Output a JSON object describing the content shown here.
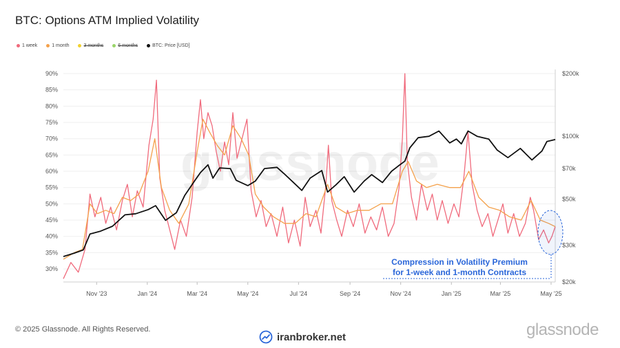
{
  "title": "BTC: Options ATM Implied Volatility",
  "legend": [
    {
      "label": "1 week",
      "color": "#f06a7c",
      "active": true
    },
    {
      "label": "1 month",
      "color": "#f4a14b",
      "active": true
    },
    {
      "label": "3 months",
      "color": "#f2d12e",
      "active": false
    },
    {
      "label": "6 months",
      "color": "#9ad56a",
      "active": false
    },
    {
      "label": "BTC: Price [USD]",
      "color": "#111111",
      "active": true
    }
  ],
  "watermark": "glassnode",
  "annotation": {
    "line1": "Compression in Volatility Premium",
    "line2": "for 1-week and 1-month Contracts",
    "color": "#2a66d9"
  },
  "footer": {
    "copyright": "© 2025 Glassnode. All Rights Reserved.",
    "brand": "glassnode",
    "broker": "iranbroker.net"
  },
  "chart_data": {
    "type": "line",
    "x_ticks": [
      "Nov '23",
      "Jan '24",
      "Mar '24",
      "May '24",
      "Jul '24",
      "Sep '24",
      "Nov '24",
      "Jan '25",
      "Mar '25",
      "May '25"
    ],
    "x_range": [
      "2023-09-22",
      "2025-05-06"
    ],
    "y_left": {
      "ticks": [
        "30%",
        "35%",
        "40%",
        "45%",
        "50%",
        "55%",
        "60%",
        "65%",
        "70%",
        "75%",
        "80%",
        "85%",
        "90%"
      ],
      "range": [
        26,
        90
      ]
    },
    "y_right": {
      "scale": "log",
      "ticks": [
        "$20k",
        "$30k",
        "$50k",
        "$70k",
        "$100k",
        "$200k"
      ],
      "tick_values": [
        20000,
        30000,
        50000,
        70000,
        100000,
        200000
      ],
      "range": [
        20000,
        200000
      ]
    },
    "grid": true,
    "series": [
      {
        "name": "1 week",
        "axis": "left",
        "color": "#f06a7c",
        "points": [
          [
            "2023-09-22",
            27
          ],
          [
            "2023-10-01",
            32
          ],
          [
            "2023-10-10",
            29
          ],
          [
            "2023-10-18",
            36
          ],
          [
            "2023-10-24",
            53
          ],
          [
            "2023-10-30",
            46
          ],
          [
            "2023-11-06",
            52
          ],
          [
            "2023-11-12",
            44
          ],
          [
            "2023-11-18",
            49
          ],
          [
            "2023-11-25",
            42
          ],
          [
            "2023-12-02",
            51
          ],
          [
            "2023-12-08",
            56
          ],
          [
            "2023-12-14",
            46
          ],
          [
            "2023-12-20",
            54
          ],
          [
            "2023-12-27",
            49
          ],
          [
            "2024-01-03",
            68
          ],
          [
            "2024-01-08",
            76
          ],
          [
            "2024-01-12",
            88
          ],
          [
            "2024-01-16",
            58
          ],
          [
            "2024-01-22",
            48
          ],
          [
            "2024-01-28",
            42
          ],
          [
            "2024-02-03",
            36
          ],
          [
            "2024-02-10",
            45
          ],
          [
            "2024-02-17",
            40
          ],
          [
            "2024-02-24",
            52
          ],
          [
            "2024-03-01",
            72
          ],
          [
            "2024-03-05",
            82
          ],
          [
            "2024-03-09",
            70
          ],
          [
            "2024-03-14",
            78
          ],
          [
            "2024-03-19",
            74
          ],
          [
            "2024-03-24",
            66
          ],
          [
            "2024-03-29",
            60
          ],
          [
            "2024-04-03",
            69
          ],
          [
            "2024-04-08",
            62
          ],
          [
            "2024-04-13",
            78
          ],
          [
            "2024-04-18",
            64
          ],
          [
            "2024-04-24",
            70
          ],
          [
            "2024-04-30",
            76
          ],
          [
            "2024-05-05",
            54
          ],
          [
            "2024-05-11",
            46
          ],
          [
            "2024-05-17",
            51
          ],
          [
            "2024-05-23",
            43
          ],
          [
            "2024-05-29",
            47
          ],
          [
            "2024-06-05",
            40
          ],
          [
            "2024-06-12",
            49
          ],
          [
            "2024-06-19",
            38
          ],
          [
            "2024-06-26",
            45
          ],
          [
            "2024-07-03",
            37
          ],
          [
            "2024-07-09",
            52
          ],
          [
            "2024-07-15",
            43
          ],
          [
            "2024-07-22",
            48
          ],
          [
            "2024-07-28",
            41
          ],
          [
            "2024-08-03",
            56
          ],
          [
            "2024-08-06",
            68
          ],
          [
            "2024-08-10",
            51
          ],
          [
            "2024-08-16",
            45
          ],
          [
            "2024-08-22",
            40
          ],
          [
            "2024-08-29",
            48
          ],
          [
            "2024-09-05",
            43
          ],
          [
            "2024-09-12",
            50
          ],
          [
            "2024-09-19",
            41
          ],
          [
            "2024-09-26",
            46
          ],
          [
            "2024-10-03",
            42
          ],
          [
            "2024-10-10",
            49
          ],
          [
            "2024-10-17",
            40
          ],
          [
            "2024-10-24",
            44
          ],
          [
            "2024-10-30",
            55
          ],
          [
            "2024-11-03",
            70
          ],
          [
            "2024-11-06",
            90
          ],
          [
            "2024-11-09",
            63
          ],
          [
            "2024-11-14",
            52
          ],
          [
            "2024-11-20",
            45
          ],
          [
            "2024-11-26",
            56
          ],
          [
            "2024-12-03",
            48
          ],
          [
            "2024-12-09",
            53
          ],
          [
            "2024-12-15",
            45
          ],
          [
            "2024-12-21",
            51
          ],
          [
            "2024-12-28",
            44
          ],
          [
            "2025-01-04",
            50
          ],
          [
            "2025-01-10",
            46
          ],
          [
            "2025-01-16",
            58
          ],
          [
            "2025-01-21",
            72
          ],
          [
            "2025-01-26",
            56
          ],
          [
            "2025-02-01",
            48
          ],
          [
            "2025-02-07",
            43
          ],
          [
            "2025-02-14",
            47
          ],
          [
            "2025-02-20",
            40
          ],
          [
            "2025-02-26",
            45
          ],
          [
            "2025-03-04",
            50
          ],
          [
            "2025-03-10",
            41
          ],
          [
            "2025-03-17",
            47
          ],
          [
            "2025-03-24",
            40
          ],
          [
            "2025-03-31",
            44
          ],
          [
            "2025-04-06",
            52
          ],
          [
            "2025-04-10",
            48
          ],
          [
            "2025-04-16",
            39
          ],
          [
            "2025-04-22",
            42
          ],
          [
            "2025-04-28",
            38
          ],
          [
            "2025-05-02",
            40
          ],
          [
            "2025-05-06",
            43
          ]
        ]
      },
      {
        "name": "1 month",
        "axis": "left",
        "color": "#f4a14b",
        "points": [
          [
            "2023-09-22",
            33
          ],
          [
            "2023-10-05",
            35
          ],
          [
            "2023-10-15",
            36
          ],
          [
            "2023-10-24",
            50
          ],
          [
            "2023-11-02",
            47
          ],
          [
            "2023-11-12",
            48
          ],
          [
            "2023-11-22",
            47
          ],
          [
            "2023-12-02",
            52
          ],
          [
            "2023-12-12",
            51
          ],
          [
            "2023-12-22",
            53
          ],
          [
            "2024-01-02",
            60
          ],
          [
            "2024-01-10",
            70
          ],
          [
            "2024-01-18",
            55
          ],
          [
            "2024-01-28",
            48
          ],
          [
            "2024-02-08",
            44
          ],
          [
            "2024-02-20",
            50
          ],
          [
            "2024-03-01",
            66
          ],
          [
            "2024-03-08",
            76
          ],
          [
            "2024-03-16",
            72
          ],
          [
            "2024-03-25",
            68
          ],
          [
            "2024-04-03",
            65
          ],
          [
            "2024-04-13",
            74
          ],
          [
            "2024-04-23",
            70
          ],
          [
            "2024-05-02",
            65
          ],
          [
            "2024-05-10",
            53
          ],
          [
            "2024-05-20",
            49
          ],
          [
            "2024-06-01",
            46
          ],
          [
            "2024-06-14",
            44
          ],
          [
            "2024-06-27",
            44
          ],
          [
            "2024-07-10",
            47
          ],
          [
            "2024-07-22",
            46
          ],
          [
            "2024-08-05",
            56
          ],
          [
            "2024-08-15",
            49
          ],
          [
            "2024-08-28",
            47
          ],
          [
            "2024-09-10",
            48
          ],
          [
            "2024-09-24",
            48
          ],
          [
            "2024-10-08",
            50
          ],
          [
            "2024-10-22",
            50
          ],
          [
            "2024-11-03",
            60
          ],
          [
            "2024-11-10",
            63
          ],
          [
            "2024-11-20",
            57
          ],
          [
            "2024-12-02",
            55
          ],
          [
            "2024-12-15",
            56
          ],
          [
            "2024-12-30",
            55
          ],
          [
            "2025-01-12",
            55
          ],
          [
            "2025-01-22",
            60
          ],
          [
            "2025-02-03",
            52
          ],
          [
            "2025-02-15",
            49
          ],
          [
            "2025-02-28",
            48
          ],
          [
            "2025-03-12",
            46
          ],
          [
            "2025-03-26",
            45
          ],
          [
            "2025-04-07",
            51
          ],
          [
            "2025-04-18",
            45
          ],
          [
            "2025-04-28",
            44
          ],
          [
            "2025-05-06",
            43
          ]
        ]
      },
      {
        "name": "BTC: Price [USD]",
        "axis": "right",
        "color": "#111111",
        "points": [
          [
            "2023-09-22",
            26500
          ],
          [
            "2023-10-05",
            27500
          ],
          [
            "2023-10-16",
            28500
          ],
          [
            "2023-10-24",
            34000
          ],
          [
            "2023-11-05",
            35000
          ],
          [
            "2023-11-20",
            37000
          ],
          [
            "2023-12-05",
            42000
          ],
          [
            "2023-12-18",
            42500
          ],
          [
            "2024-01-02",
            44500
          ],
          [
            "2024-01-11",
            46500
          ],
          [
            "2024-01-23",
            39500
          ],
          [
            "2024-02-05",
            43000
          ],
          [
            "2024-02-15",
            52000
          ],
          [
            "2024-02-28",
            62000
          ],
          [
            "2024-03-05",
            67000
          ],
          [
            "2024-03-14",
            73000
          ],
          [
            "2024-03-20",
            63000
          ],
          [
            "2024-03-28",
            70500
          ],
          [
            "2024-04-10",
            70000
          ],
          [
            "2024-04-17",
            61500
          ],
          [
            "2024-05-01",
            58000
          ],
          [
            "2024-05-10",
            61000
          ],
          [
            "2024-05-21",
            70000
          ],
          [
            "2024-06-05",
            71000
          ],
          [
            "2024-06-14",
            66000
          ],
          [
            "2024-06-24",
            60500
          ],
          [
            "2024-07-05",
            55000
          ],
          [
            "2024-07-15",
            63000
          ],
          [
            "2024-07-29",
            68500
          ],
          [
            "2024-08-05",
            54000
          ],
          [
            "2024-08-15",
            58500
          ],
          [
            "2024-08-25",
            64000
          ],
          [
            "2024-09-06",
            54000
          ],
          [
            "2024-09-18",
            61000
          ],
          [
            "2024-09-27",
            65500
          ],
          [
            "2024-10-10",
            60000
          ],
          [
            "2024-10-21",
            68000
          ],
          [
            "2024-10-29",
            72000
          ],
          [
            "2024-11-06",
            76000
          ],
          [
            "2024-11-12",
            88000
          ],
          [
            "2024-11-22",
            98500
          ],
          [
            "2024-12-05",
            100000
          ],
          [
            "2024-12-17",
            106000
          ],
          [
            "2024-12-30",
            93000
          ],
          [
            "2025-01-07",
            97000
          ],
          [
            "2025-01-13",
            92000
          ],
          [
            "2025-01-21",
            106000
          ],
          [
            "2025-02-01",
            100000
          ],
          [
            "2025-02-15",
            97000
          ],
          [
            "2025-02-25",
            86000
          ],
          [
            "2025-03-10",
            79000
          ],
          [
            "2025-03-25",
            87500
          ],
          [
            "2025-04-08",
            77000
          ],
          [
            "2025-04-20",
            85000
          ],
          [
            "2025-04-26",
            94500
          ],
          [
            "2025-05-06",
            96500
          ]
        ]
      }
    ]
  }
}
